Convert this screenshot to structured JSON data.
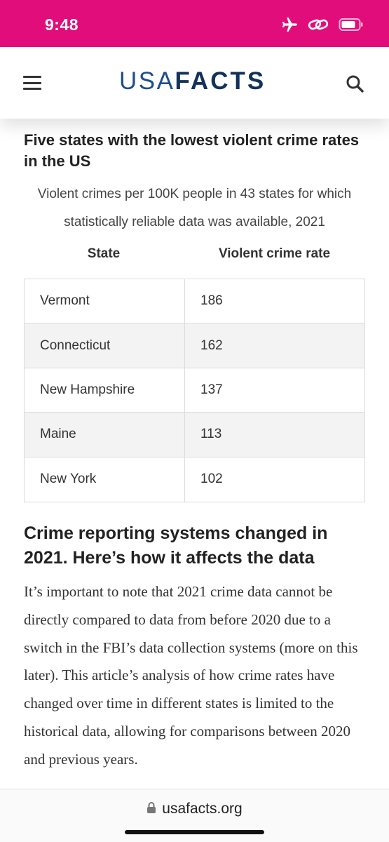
{
  "status_bar": {
    "time": "9:48",
    "icons": [
      "airplane-icon",
      "link-icon",
      "battery-icon"
    ]
  },
  "header": {
    "logo_thin": "USA",
    "logo_bold": "FACTS",
    "brand_color": "#12325c",
    "accent_color": "#e10d7a"
  },
  "chart": {
    "title": "Five states with the lowest violent crime rates in the US",
    "subtitle": "Violent crimes per 100K people in 43 states for which statistically reliable data was available, 2021",
    "columns": [
      "State",
      "Violent crime rate"
    ],
    "rows": [
      {
        "state": "Vermont",
        "rate": "186"
      },
      {
        "state": "Connecticut",
        "rate": "162"
      },
      {
        "state": "New Hampshire",
        "rate": "137"
      },
      {
        "state": "Maine",
        "rate": "113"
      },
      {
        "state": "New York",
        "rate": "102"
      }
    ]
  },
  "chart_data": {
    "type": "table",
    "title": "Five states with the lowest violent crime rates in the US",
    "subtitle": "Violent crimes per 100K people in 43 states for which statistically reliable data was available, 2021",
    "columns": [
      "State",
      "Violent crime rate"
    ],
    "categories": [
      "Vermont",
      "Connecticut",
      "New Hampshire",
      "Maine",
      "New York"
    ],
    "values": [
      186,
      162,
      137,
      113,
      102
    ]
  },
  "article": {
    "heading": "Crime reporting systems changed in 2021. Here’s how it affects the data",
    "body": "It’s important to note that 2021 crime data cannot be directly compared to data from before 2020 due to a switch in the FBI’s data collection systems (more on this later). This article’s analysis of how crime rates have changed over time in different states is limited to the historical data, allowing for comparisons between 2020 and previous years."
  },
  "browser": {
    "url": "usafacts.org"
  }
}
